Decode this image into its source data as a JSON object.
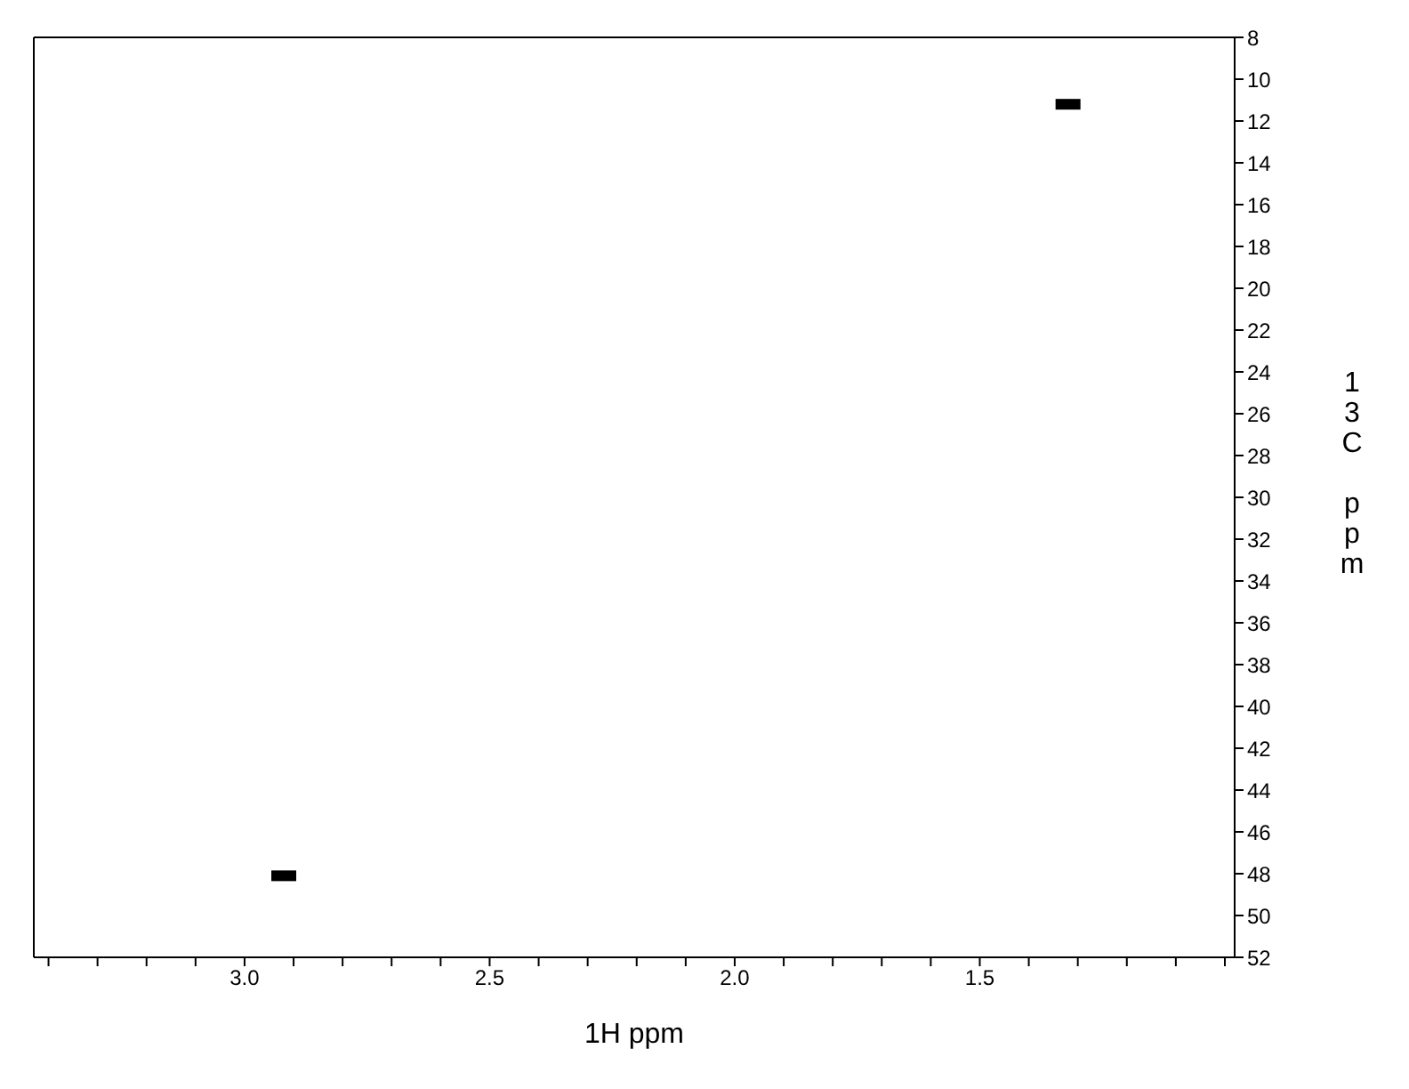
{
  "chart_data": {
    "type": "scatter",
    "xlabel": "1H ppm",
    "y2label": "13C ppm",
    "x": [
      2.92,
      1.32
    ],
    "series": [
      {
        "color": "#000000",
        "values": [
          48.1,
          11.2
        ],
        "axis": "y2"
      }
    ],
    "xlim": [
      3.43,
      0.98
    ],
    "xticks": [
      {
        "value": 3.4,
        "label": null
      },
      {
        "value": 3.3,
        "label": null
      },
      {
        "value": 3.2,
        "label": null
      },
      {
        "value": 3.1,
        "label": null
      },
      {
        "value": 3,
        "label": "3.0"
      },
      {
        "value": 2.9,
        "label": null
      },
      {
        "value": 2.8,
        "label": null
      },
      {
        "value": 2.7,
        "label": null
      },
      {
        "value": 2.6,
        "label": null
      },
      {
        "value": 2.5,
        "label": "2.5"
      },
      {
        "value": 2.4,
        "label": null
      },
      {
        "value": 2.3,
        "label": null
      },
      {
        "value": 2.2,
        "label": null
      },
      {
        "value": 2.1,
        "label": null
      },
      {
        "value": 2,
        "label": "2.0"
      },
      {
        "value": 1.9,
        "label": null
      },
      {
        "value": 1.8,
        "label": null
      },
      {
        "value": 1.7,
        "label": null
      },
      {
        "value": 1.6,
        "label": null
      },
      {
        "value": 1.5,
        "label": "1.5"
      },
      {
        "value": 1.4,
        "label": null
      },
      {
        "value": 1.3,
        "label": null
      },
      {
        "value": 1.2,
        "label": null
      },
      {
        "value": 1.1,
        "label": null
      },
      {
        "value": 1,
        "label": null
      }
    ],
    "y2lim": [
      52,
      8
    ],
    "y2ticks": [
      8,
      10,
      12,
      14,
      16,
      18,
      20,
      22,
      24,
      26,
      28,
      30,
      32,
      34,
      36,
      38,
      40,
      42,
      44,
      46,
      48,
      50,
      52
    ],
    "grid": false,
    "marker": "square"
  }
}
